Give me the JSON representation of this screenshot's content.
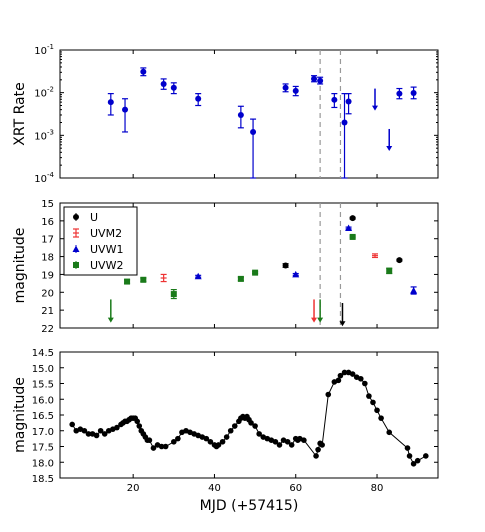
{
  "chart_data": [
    {
      "type": "scatter",
      "ylabel": "XRT Rate",
      "yscale": "log",
      "ylim": [
        0.0001,
        0.1
      ],
      "xlim": [
        2,
        95
      ],
      "color": "#0000cc",
      "yticks": [
        {
          "v": 0.0001,
          "b": "10",
          "e": "-4"
        },
        {
          "v": 0.001,
          "b": "10",
          "e": "-3"
        },
        {
          "v": 0.01,
          "b": "10",
          "e": "-2"
        },
        {
          "v": 0.1,
          "b": "10",
          "e": "-1"
        }
      ],
      "points": [
        {
          "x": 14.5,
          "y": 0.006,
          "lo": 0.003,
          "hi": 0.0095
        },
        {
          "x": 18.0,
          "y": 0.004,
          "lo": 0.0012,
          "hi": 0.0072
        },
        {
          "x": 22.5,
          "y": 0.031,
          "lo": 0.025,
          "hi": 0.038
        },
        {
          "x": 27.5,
          "y": 0.016,
          "lo": 0.012,
          "hi": 0.021
        },
        {
          "x": 30.0,
          "y": 0.013,
          "lo": 0.0095,
          "hi": 0.017
        },
        {
          "x": 36.0,
          "y": 0.0072,
          "lo": 0.005,
          "hi": 0.0095
        },
        {
          "x": 46.5,
          "y": 0.003,
          "lo": 0.0015,
          "hi": 0.0048
        },
        {
          "x": 49.5,
          "y": 0.0012,
          "lo": 0.0001,
          "hi": 0.0024
        },
        {
          "x": 57.5,
          "y": 0.013,
          "lo": 0.0105,
          "hi": 0.016
        },
        {
          "x": 60.0,
          "y": 0.011,
          "lo": 0.0085,
          "hi": 0.014
        },
        {
          "x": 64.5,
          "y": 0.021,
          "lo": 0.018,
          "hi": 0.025
        },
        {
          "x": 66.0,
          "y": 0.019,
          "lo": 0.016,
          "hi": 0.023
        },
        {
          "x": 69.5,
          "y": 0.0068,
          "lo": 0.0045,
          "hi": 0.0095
        },
        {
          "x": 72.0,
          "y": 0.002,
          "lo": 0.0001,
          "hi": 0.0095
        },
        {
          "x": 73.0,
          "y": 0.0062,
          "lo": 0.0032,
          "hi": 0.0095
        },
        {
          "x": 85.5,
          "y": 0.0095,
          "lo": 0.0072,
          "hi": 0.0125
        },
        {
          "x": 89.0,
          "y": 0.0098,
          "lo": 0.0072,
          "hi": 0.0135
        }
      ],
      "upper_limits": [
        {
          "x": 79.5,
          "y": 0.0038
        },
        {
          "x": 83.0,
          "y": 0.00043
        }
      ],
      "vlines": [
        66.0,
        71.0
      ]
    },
    {
      "type": "scatter",
      "ylabel": "magnitude",
      "ylim": [
        22,
        15
      ],
      "xlim": [
        2,
        95
      ],
      "yticks": [
        15,
        16,
        17,
        18,
        19,
        20,
        21,
        22
      ],
      "legend_position": "top-left",
      "series": [
        {
          "name": "U",
          "color": "#000000",
          "marker": "circle",
          "points": [
            {
              "x": 57.5,
              "y": 18.5,
              "e": 0.1
            },
            {
              "x": 74.0,
              "y": 15.85,
              "e": 0.05
            },
            {
              "x": 85.5,
              "y": 18.2,
              "e": 0.05
            }
          ],
          "upper_limits": [
            {
              "x": 71.5,
              "y": 20.6
            }
          ]
        },
        {
          "name": "UVM2",
          "color": "#ee3333",
          "marker": "errorbar",
          "points": [
            {
              "x": 27.5,
              "y": 19.2,
              "e": 0.2
            },
            {
              "x": 79.5,
              "y": 17.95,
              "e": 0.1
            }
          ],
          "upper_limits": [
            {
              "x": 64.5,
              "y": 20.4
            }
          ]
        },
        {
          "name": "UVW1",
          "color": "#0000cc",
          "marker": "triangle",
          "points": [
            {
              "x": 36.0,
              "y": 19.1,
              "e": 0.05
            },
            {
              "x": 60.0,
              "y": 19.0,
              "e": 0.05
            },
            {
              "x": 73.0,
              "y": 16.4,
              "e": 0.05
            },
            {
              "x": 89.0,
              "y": 19.9,
              "e": 0.2
            }
          ],
          "upper_limits": []
        },
        {
          "name": "UVW2",
          "color": "#1a7a1a",
          "marker": "square",
          "points": [
            {
              "x": 18.5,
              "y": 19.4,
              "e": 0.1
            },
            {
              "x": 22.5,
              "y": 19.3,
              "e": 0.1
            },
            {
              "x": 30.0,
              "y": 20.1,
              "e": 0.25
            },
            {
              "x": 46.5,
              "y": 19.25,
              "e": 0.1
            },
            {
              "x": 50.0,
              "y": 18.9,
              "e": 0.05
            },
            {
              "x": 74.0,
              "y": 16.9,
              "e": 0.05
            },
            {
              "x": 83.0,
              "y": 18.8,
              "e": 0.15
            }
          ],
          "upper_limits": [
            {
              "x": 14.5,
              "y": 20.4
            },
            {
              "x": 66.0,
              "y": 20.4
            }
          ]
        }
      ],
      "vlines": [
        66.0,
        71.0
      ]
    },
    {
      "type": "line",
      "ylabel": "magnitude",
      "xlabel": "MJD (+57415)",
      "ylim": [
        18.5,
        14.5
      ],
      "xlim": [
        2,
        95
      ],
      "color": "#000000",
      "yticks": [
        "14.5",
        "15.0",
        "15.5",
        "16.0",
        "16.5",
        "17.0",
        "17.5",
        "18.0",
        "18.5"
      ],
      "xticks": [
        20,
        40,
        60,
        80
      ],
      "x": [
        5.0,
        6.0,
        7.0,
        8.0,
        9.0,
        10.0,
        11.0,
        12.0,
        13.0,
        14.0,
        15.0,
        16.0,
        17.0,
        17.5,
        18.0,
        18.5,
        19.0,
        19.5,
        20.0,
        20.5,
        21.0,
        21.5,
        22.0,
        22.5,
        23.0,
        23.5,
        24.0,
        25.0,
        26.0,
        27.0,
        28.0,
        30.0,
        31.0,
        32.0,
        33.0,
        34.0,
        35.0,
        36.0,
        37.0,
        38.0,
        39.0,
        40.0,
        40.5,
        41.0,
        42.0,
        43.0,
        44.0,
        45.0,
        46.0,
        46.5,
        47.0,
        47.5,
        48.0,
        48.5,
        49.0,
        50.0,
        51.0,
        52.0,
        53.0,
        54.0,
        55.0,
        56.0,
        57.0,
        58.0,
        59.0,
        60.0,
        60.5,
        61.0,
        62.0,
        65.0,
        65.5,
        66.0,
        66.5,
        68.0,
        69.5,
        70.5,
        71.0,
        72.0,
        73.0,
        74.0,
        75.0,
        76.0,
        77.0,
        78.0,
        79.0,
        80.0,
        81.0,
        83.0,
        87.5,
        88.0,
        89.0,
        90.0,
        92.0
      ],
      "y": [
        16.8,
        17.0,
        16.95,
        17.0,
        17.1,
        17.1,
        17.15,
        17.0,
        17.1,
        17.0,
        16.95,
        16.9,
        16.8,
        16.75,
        16.7,
        16.7,
        16.65,
        16.6,
        16.6,
        16.6,
        16.7,
        16.85,
        17.0,
        17.1,
        17.2,
        17.3,
        17.3,
        17.55,
        17.45,
        17.5,
        17.5,
        17.35,
        17.25,
        17.05,
        17.0,
        17.05,
        17.1,
        17.15,
        17.2,
        17.25,
        17.35,
        17.45,
        17.5,
        17.45,
        17.35,
        17.2,
        17.0,
        16.85,
        16.7,
        16.6,
        16.55,
        16.6,
        16.55,
        16.65,
        16.75,
        16.85,
        17.1,
        17.2,
        17.25,
        17.3,
        17.35,
        17.45,
        17.3,
        17.35,
        17.45,
        17.25,
        17.3,
        17.25,
        17.3,
        17.8,
        17.6,
        17.4,
        17.45,
        15.85,
        15.45,
        15.4,
        15.25,
        15.15,
        15.15,
        15.2,
        15.3,
        15.35,
        15.5,
        15.9,
        16.1,
        16.35,
        16.6,
        17.05,
        17.55,
        17.8,
        18.05,
        17.95,
        17.8
      ]
    }
  ]
}
